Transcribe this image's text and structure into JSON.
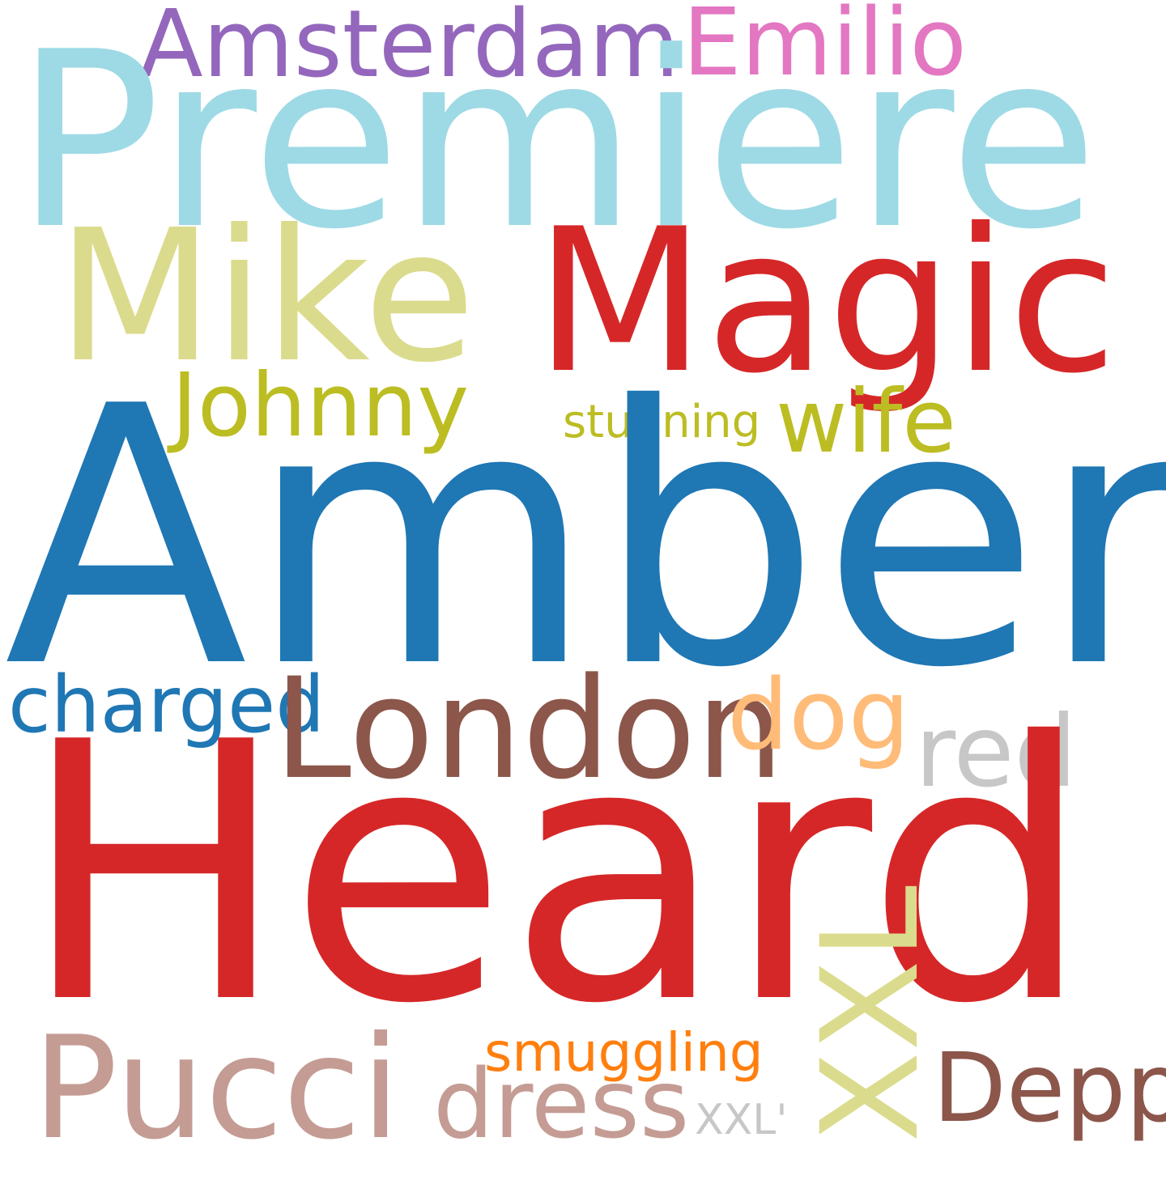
{
  "words": {
    "amsterdam": {
      "text": "Amsterdam",
      "color": "#9467bd"
    },
    "emilio": {
      "text": "Emilio",
      "color": "#e377c2"
    },
    "premiere": {
      "text": "Premiere",
      "color": "#9edae5"
    },
    "mike": {
      "text": "Mike",
      "color": "#dbdb8d"
    },
    "magic": {
      "text": "Magic",
      "color": "#d62728"
    },
    "johnny": {
      "text": "Johnny",
      "color": "#bcbd22"
    },
    "stunning": {
      "text": "stunning",
      "color": "#bcbd22"
    },
    "wife": {
      "text": "wife",
      "color": "#bcbd22"
    },
    "amber": {
      "text": "Amber",
      "color": "#1f77b4"
    },
    "charged": {
      "text": "charged",
      "color": "#1f77b4"
    },
    "london": {
      "text": "London",
      "color": "#8c564b"
    },
    "dog": {
      "text": "dog",
      "color": "#ffbb78"
    },
    "red": {
      "text": "red",
      "color": "#c7c7c7"
    },
    "heard": {
      "text": "Heard",
      "color": "#d62728"
    },
    "xxl": {
      "text": "XXL",
      "color": "#dbdb8d"
    },
    "pucci": {
      "text": "Pucci",
      "color": "#c49c94"
    },
    "smuggling": {
      "text": "smuggling",
      "color": "#ff7f0e"
    },
    "dress": {
      "text": "dress",
      "color": "#c49c94"
    },
    "xxl_quote": {
      "text": "XXL'",
      "color": "#c7c7c7"
    },
    "depp": {
      "text": "Depp",
      "color": "#8c564b"
    }
  }
}
